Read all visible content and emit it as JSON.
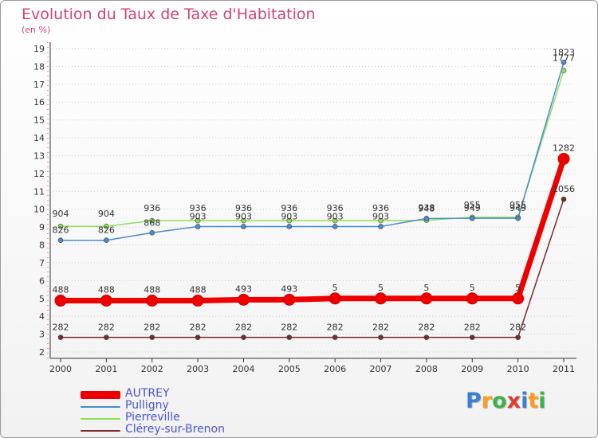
{
  "chart_data": {
    "type": "line",
    "title": "Evolution du Taux de Taxe d'Habitation",
    "subtitle": "(en %)",
    "x": [
      "2000",
      "2001",
      "2002",
      "2003",
      "2004",
      "2005",
      "2006",
      "2007",
      "2008",
      "2009",
      "2010",
      "2011"
    ],
    "ylim": [
      2,
      19
    ],
    "yticks": [
      2,
      3,
      4,
      5,
      6,
      7,
      8,
      9,
      10,
      11,
      12,
      13,
      14,
      15,
      16,
      17,
      18,
      19
    ],
    "grid": "horizontal dotted",
    "legend_position": "bottom-left",
    "series": [
      {
        "name": "AUTREY",
        "color": "#ee0000",
        "values": [
          4.88,
          4.88,
          4.88,
          4.88,
          4.93,
          4.93,
          5,
          5,
          5,
          5,
          5,
          12.82
        ],
        "labels": [
          "488",
          "488",
          "488",
          "488",
          "493",
          "493",
          "5",
          "5",
          "5",
          "5",
          "5",
          "1282"
        ]
      },
      {
        "name": "Pulligny",
        "color": "#4b8bd0",
        "values": [
          8.26,
          8.26,
          8.68,
          9.03,
          9.03,
          9.03,
          9.03,
          9.03,
          9.48,
          9.49,
          9.49,
          18.23
        ],
        "labels": [
          "826",
          "826",
          "868",
          "903",
          "903",
          "903",
          "903",
          "903",
          "948",
          "949",
          "949",
          "1823"
        ]
      },
      {
        "name": "Pierreville",
        "color": "#8ee05a",
        "values": [
          9.04,
          9.04,
          9.36,
          9.36,
          9.36,
          9.36,
          9.36,
          9.36,
          9.38,
          9.55,
          9.55,
          17.77
        ],
        "labels": [
          "904",
          "904",
          "936",
          "936",
          "936",
          "936",
          "936",
          "936",
          "938",
          "955",
          "955",
          "1777"
        ]
      },
      {
        "name": "Clérey-sur-Brenon",
        "color": "#7a2a2a",
        "values": [
          2.82,
          2.82,
          2.82,
          2.82,
          2.82,
          2.82,
          2.82,
          2.82,
          2.82,
          2.82,
          2.82,
          10.56
        ],
        "labels": [
          "282",
          "282",
          "282",
          "282",
          "282",
          "282",
          "282",
          "282",
          "282",
          "282",
          "282",
          "1056"
        ]
      }
    ]
  },
  "logo": {
    "letters": [
      "P",
      "r",
      "o",
      "x",
      "i",
      "t",
      "i"
    ],
    "colors": [
      "#3b7fd1",
      "#ff9a1a",
      "#3bb34a",
      "#e23a2e",
      "#3b7fd1",
      "#ff9a1a",
      "#3bb34a"
    ]
  }
}
